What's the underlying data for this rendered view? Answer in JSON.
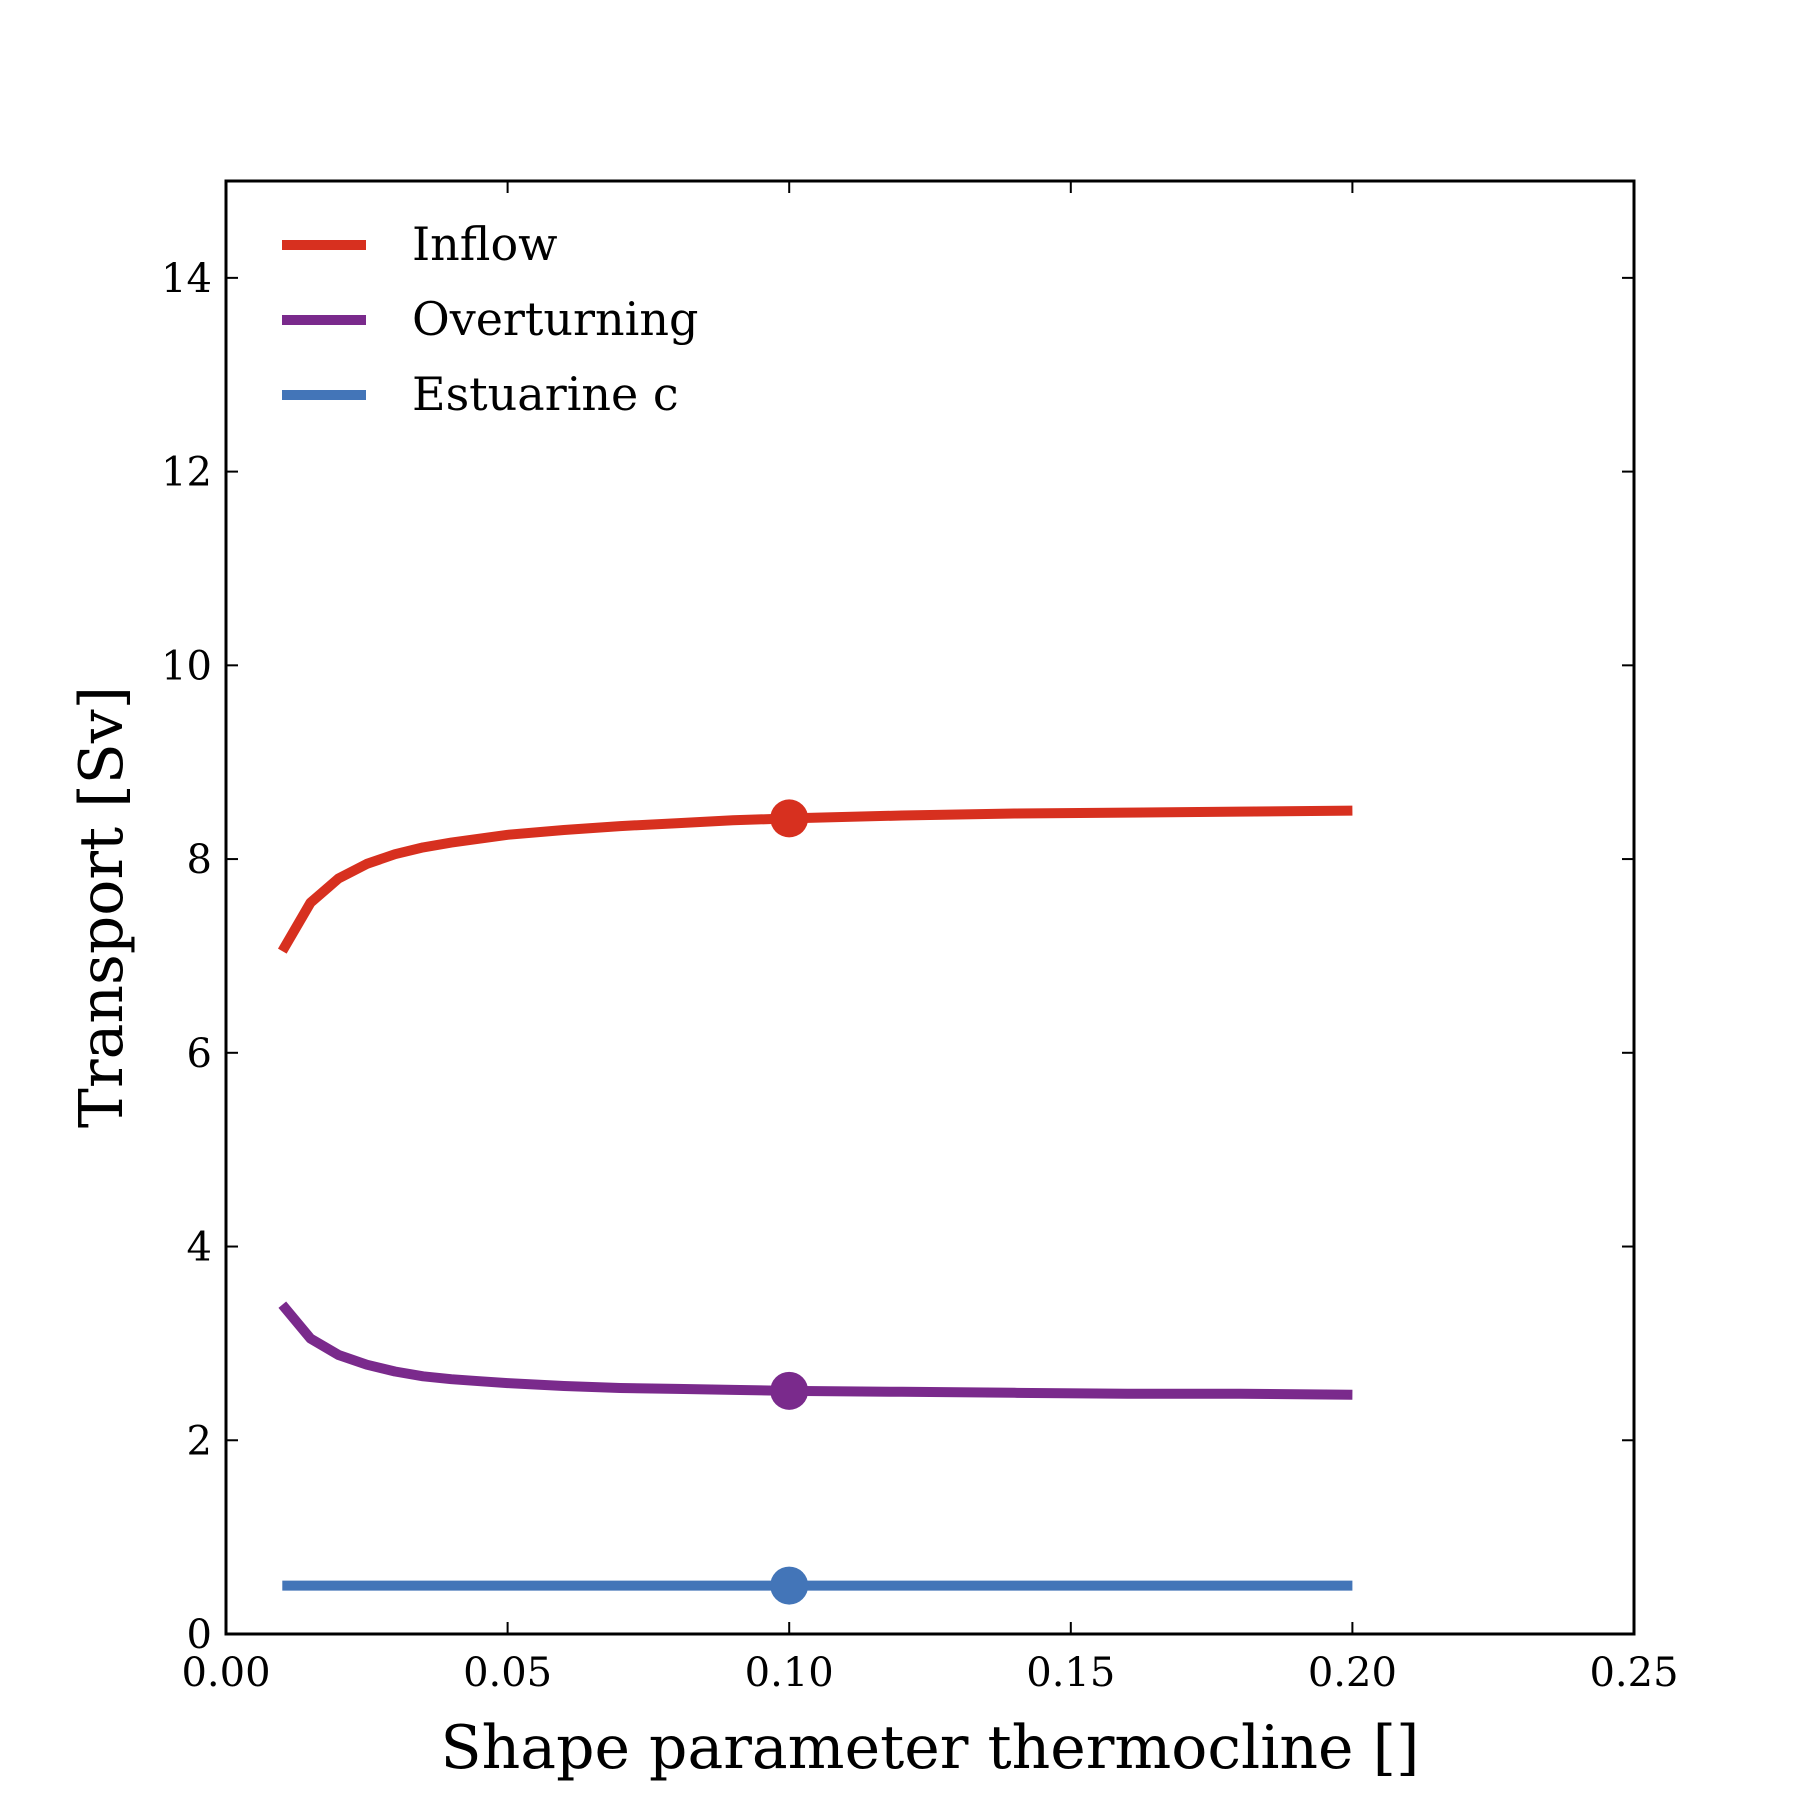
{
  "chart_data": {
    "type": "line",
    "title": "",
    "xlabel": "Shape parameter thermocline []",
    "ylabel": "Transport [Sv]",
    "xlim": [
      0.0,
      0.25
    ],
    "ylim": [
      0,
      15
    ],
    "xticks": [
      "0.00",
      "0.05",
      "0.10",
      "0.15",
      "0.20",
      "0.25"
    ],
    "yticks": [
      "0",
      "2",
      "4",
      "6",
      "8",
      "10",
      "12",
      "14"
    ],
    "grid": false,
    "legend_position": "top-left",
    "x": [
      0.01,
      0.015,
      0.02,
      0.025,
      0.03,
      0.035,
      0.04,
      0.045,
      0.05,
      0.06,
      0.07,
      0.08,
      0.09,
      0.1,
      0.12,
      0.14,
      0.16,
      0.18,
      0.2
    ],
    "series": [
      {
        "name": "Inflow",
        "color": "#d7301f",
        "values": [
          7.05,
          7.55,
          7.8,
          7.95,
          8.05,
          8.12,
          8.17,
          8.21,
          8.25,
          8.3,
          8.34,
          8.37,
          8.4,
          8.42,
          8.45,
          8.47,
          8.48,
          8.49,
          8.5
        ],
        "marker": {
          "x": 0.1,
          "y": 8.42
        }
      },
      {
        "name": "Overturning",
        "color": "#7a2a8c",
        "values": [
          3.4,
          3.05,
          2.88,
          2.78,
          2.71,
          2.66,
          2.63,
          2.61,
          2.59,
          2.56,
          2.54,
          2.53,
          2.52,
          2.51,
          2.5,
          2.49,
          2.48,
          2.48,
          2.47
        ],
        "marker": {
          "x": 0.1,
          "y": 2.51
        }
      },
      {
        "name": "Estuarine c",
        "color": "#4375b8",
        "values": [
          0.5,
          0.5,
          0.5,
          0.5,
          0.5,
          0.5,
          0.5,
          0.5,
          0.5,
          0.5,
          0.5,
          0.5,
          0.5,
          0.5,
          0.5,
          0.5,
          0.5,
          0.5,
          0.5
        ],
        "marker": {
          "x": 0.1,
          "y": 0.5
        }
      }
    ]
  }
}
